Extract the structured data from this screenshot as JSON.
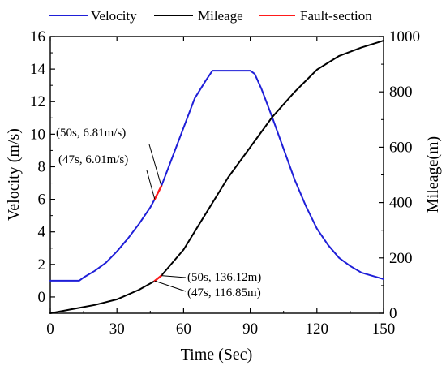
{
  "chart_data": {
    "type": "line",
    "xlabel": "Time (Sec)",
    "ylabel_left": "Velocity (m/s)",
    "ylabel_right": "Mileage(m)",
    "xlim": [
      0,
      150
    ],
    "ylim_left": [
      -1,
      16
    ],
    "ylim_right": [
      0,
      1000
    ],
    "xticks": [
      "0",
      "30",
      "60",
      "90",
      "120",
      "150"
    ],
    "yticks_left": [
      "0",
      "2",
      "4",
      "6",
      "8",
      "10",
      "12",
      "14",
      "16"
    ],
    "yticks_right": [
      "0",
      "200",
      "400",
      "600",
      "800",
      "1000"
    ],
    "legend_position": "top",
    "legend": [
      {
        "name": "Velocity",
        "color": "#1f1fd8"
      },
      {
        "name": "Mileage",
        "color": "#000000"
      },
      {
        "name": "Fault-section",
        "color": "#ff1a1a"
      }
    ],
    "series": [
      {
        "name": "Velocity",
        "axis": "left",
        "color": "#1f1fd8",
        "x": [
          0,
          13,
          15,
          20,
          25,
          30,
          35,
          40,
          45,
          47,
          50,
          55,
          60,
          65,
          70,
          73,
          75,
          80,
          85,
          90,
          92,
          95,
          100,
          105,
          110,
          115,
          120,
          125,
          130,
          135,
          140,
          145,
          150
        ],
        "y": [
          1.0,
          1.0,
          1.2,
          1.6,
          2.1,
          2.8,
          3.6,
          4.5,
          5.5,
          6.01,
          6.81,
          8.6,
          10.4,
          12.2,
          13.3,
          13.9,
          13.9,
          13.9,
          13.9,
          13.9,
          13.7,
          12.8,
          11.0,
          9.1,
          7.2,
          5.6,
          4.2,
          3.2,
          2.4,
          1.9,
          1.5,
          1.3,
          1.1
        ]
      },
      {
        "name": "Mileage",
        "axis": "right",
        "color": "#000000",
        "x": [
          0,
          10,
          20,
          30,
          40,
          47,
          50,
          60,
          70,
          80,
          90,
          100,
          110,
          120,
          130,
          140,
          150
        ],
        "y": [
          0,
          15,
          30,
          50,
          85,
          116.85,
          136.12,
          230,
          360,
          490,
          600,
          710,
          800,
          880,
          930,
          960,
          985
        ]
      },
      {
        "name": "Fault-section",
        "axis": "left",
        "color": "#ff1a1a",
        "x": [
          47,
          48,
          49,
          50
        ],
        "y": [
          6.01,
          6.28,
          6.55,
          6.81
        ]
      },
      {
        "name": "Fault-section",
        "axis": "right",
        "color": "#ff1a1a",
        "x": [
          47,
          48,
          49,
          50
        ],
        "y": [
          116.85,
          123.3,
          129.7,
          136.12
        ]
      }
    ],
    "annotations": [
      {
        "text": "(50s, 6.81m/s)",
        "x": 50,
        "y": 6.81,
        "axis": "left"
      },
      {
        "text": "(47s, 6.01m/s)",
        "x": 47,
        "y": 6.01,
        "axis": "left"
      },
      {
        "text": "(50s, 136.12m)",
        "x": 50,
        "y": 136.12,
        "axis": "right"
      },
      {
        "text": "(47s, 116.85m)",
        "x": 47,
        "y": 116.85,
        "axis": "right"
      }
    ]
  }
}
